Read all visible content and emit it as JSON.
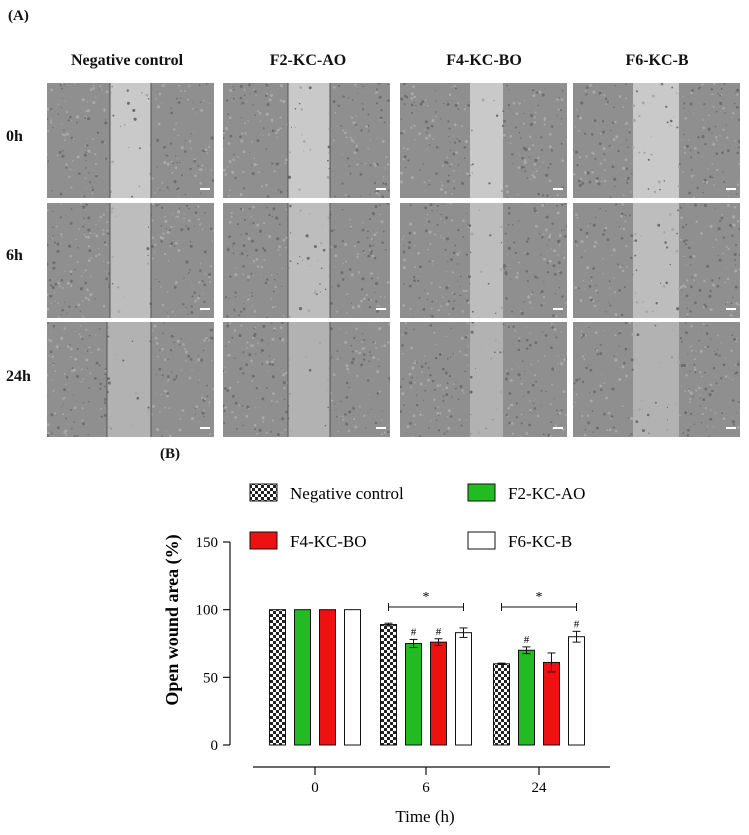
{
  "panel_a_label": "(A)",
  "panel_b_label": "(B)",
  "columns": [
    "Negative control",
    "F2-KC-AO",
    "F4-KC-BO",
    "F6-KC-B"
  ],
  "rows": [
    "0h",
    "6h",
    "24h"
  ],
  "chart_data": {
    "type": "bar",
    "categories": [
      "0",
      "6",
      "24"
    ],
    "xlabel": "Time (h)",
    "ylabel": "Open wound area (%)",
    "ylim": [
      0,
      150
    ],
    "yticks": [
      0,
      50,
      100,
      150
    ],
    "legend_position": "top",
    "series": [
      {
        "name": "Negative control",
        "values": [
          100,
          89,
          60
        ],
        "errors": [
          0,
          1,
          0.5
        ],
        "color": "checker",
        "marks": [
          "",
          "",
          ""
        ]
      },
      {
        "name": "F2-KC-AO",
        "values": [
          100,
          75,
          70
        ],
        "errors": [
          0,
          3,
          2.5
        ],
        "color": "#22bb22",
        "marks": [
          "",
          "#",
          "#"
        ]
      },
      {
        "name": "F4-KC-BO",
        "values": [
          100,
          76,
          61
        ],
        "errors": [
          0,
          2.5,
          7
        ],
        "color": "#ee1111",
        "marks": [
          "",
          "#",
          ""
        ]
      },
      {
        "name": "F6-KC-B",
        "values": [
          100,
          83,
          80
        ],
        "errors": [
          0,
          3.5,
          4
        ],
        "color": "#ffffff",
        "marks": [
          "",
          "",
          "#"
        ]
      }
    ],
    "significance": [
      {
        "category": "6",
        "label": "*"
      },
      {
        "category": "24",
        "label": "*"
      }
    ]
  }
}
